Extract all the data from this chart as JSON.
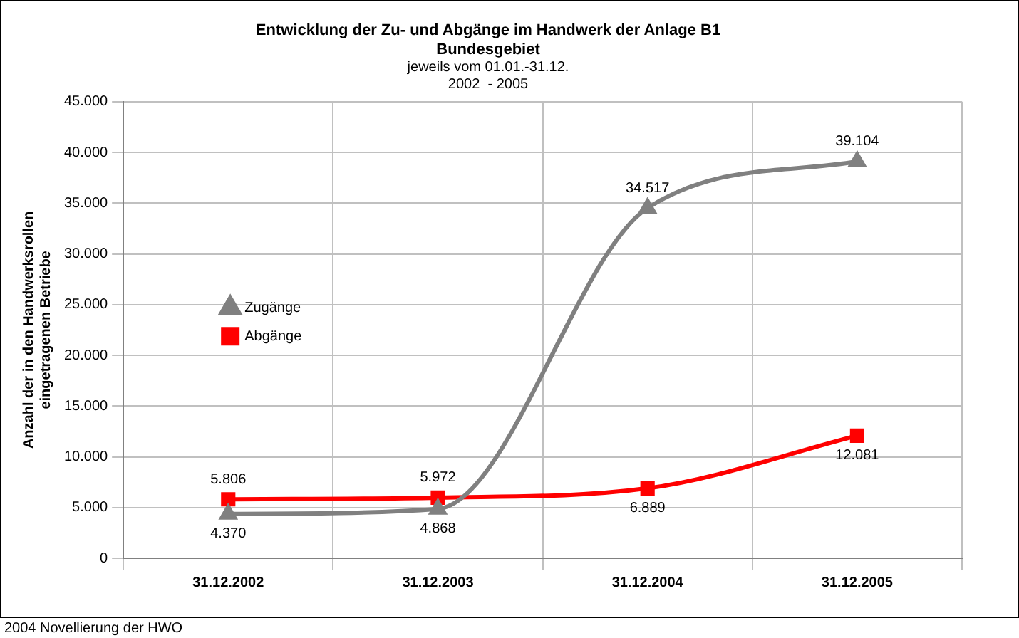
{
  "chart_data": {
    "type": "line",
    "title": "Entwicklung der Zu- und Abgänge im Handwerk der Anlage B1\nBundesgebiet",
    "subtitle": "jeweils vom 01.01.-31.12.\n2002  - 2005",
    "ylabel": "Anzahl der in den Handwerksrollen\neingetragenen Betriebe",
    "categories": [
      "31.12.2002",
      "31.12.2003",
      "31.12.2004",
      "31.12.2005"
    ],
    "series": [
      {
        "name": "Zugänge",
        "color": "#808080",
        "marker": "triangle",
        "values": [
          4370,
          4868,
          34517,
          39104
        ],
        "value_labels": [
          "4.370",
          "4.868",
          "34.517",
          "39.104"
        ]
      },
      {
        "name": "Abgänge",
        "color": "#ff0000",
        "marker": "square",
        "values": [
          5806,
          5972,
          6889,
          12081
        ],
        "value_labels": [
          "5.806",
          "5.972",
          "6.889",
          "12.081"
        ]
      }
    ],
    "ylim": [
      0,
      45000
    ],
    "yticks": [
      0,
      {
        "value": 5000,
        "label": "5.000"
      },
      {
        "value": 10000,
        "label": "10.000"
      },
      {
        "value": 15000,
        "label": "15.000"
      },
      {
        "value": 20000,
        "label": "20.000"
      },
      {
        "value": 25000,
        "label": "25.000"
      },
      {
        "value": 30000,
        "label": "30.000"
      },
      {
        "value": 35000,
        "label": "35.000"
      },
      {
        "value": 40000,
        "label": "40.000"
      },
      {
        "value": 45000,
        "label": "45.000"
      }
    ],
    "grid": true,
    "legend": "left",
    "annotations": [
      "2004 Novellierung der HWO"
    ]
  }
}
